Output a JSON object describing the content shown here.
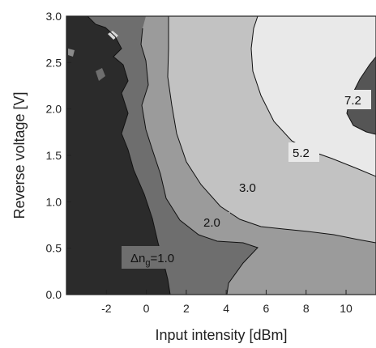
{
  "chart_data": {
    "type": "heatmap",
    "subtype": "filled-contour",
    "title": "",
    "xlabel": "Input intensity [dBm]",
    "ylabel": "Reverse voltage [V]",
    "xlim": [
      -4,
      11.5
    ],
    "ylim": [
      0,
      3
    ],
    "x_ticks": [
      -2,
      0,
      2,
      4,
      6,
      8,
      10
    ],
    "y_ticks": [
      0.0,
      0.5,
      1.0,
      1.5,
      2.0,
      2.5,
      3.0
    ],
    "x_tick_labels": [
      "-2",
      "0",
      "2",
      "4",
      "6",
      "8",
      "10"
    ],
    "y_tick_labels": [
      "0.0",
      "0.5",
      "1.0",
      "1.5",
      "2.0",
      "2.5",
      "3.0"
    ],
    "grid": false,
    "legend": "none",
    "contour_labels": [
      {
        "prefix": "Δn",
        "subscript": "g",
        "text": "=1.0",
        "value": 1.0
      },
      {
        "text": "2.0",
        "value": 2.0
      },
      {
        "text": "3.0",
        "value": 3.0
      },
      {
        "text": "5.2",
        "value": 5.2
      },
      {
        "text": "7.2",
        "value": 7.2
      }
    ],
    "levels": [
      {
        "min": 0,
        "max": 1.0,
        "color": "#2b2b2b"
      },
      {
        "min": 1.0,
        "max": 2.0,
        "color": "#6e6e6e"
      },
      {
        "min": 2.0,
        "max": 3.0,
        "color": "#9b9b9b"
      },
      {
        "min": 3.0,
        "max": 5.2,
        "color": "#c2c2c2"
      },
      {
        "min": 5.2,
        "max": 7.2,
        "color": "#e9e9e9"
      },
      {
        "min": 7.2,
        "max": 10,
        "color": "#555555"
      }
    ]
  }
}
